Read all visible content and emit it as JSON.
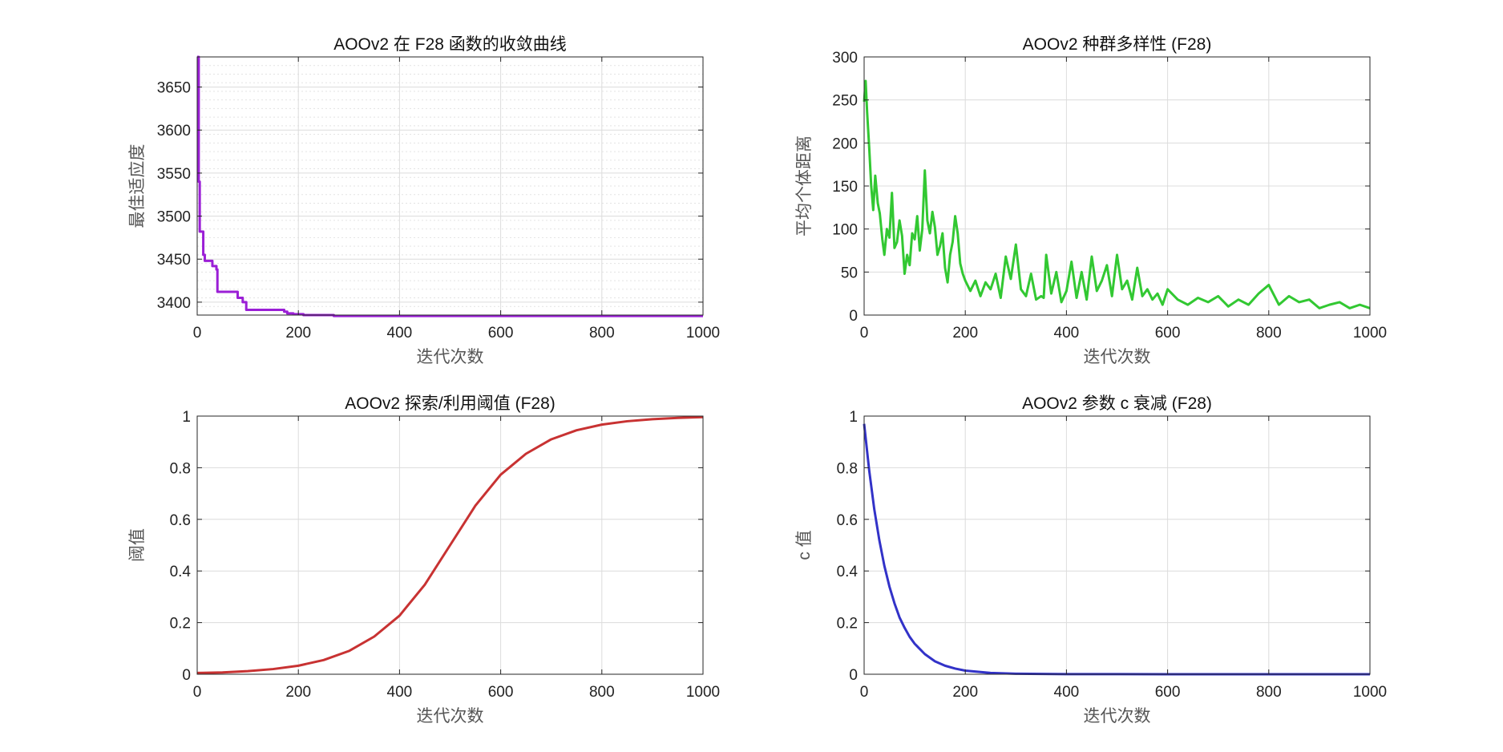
{
  "chart_data": [
    {
      "type": "line",
      "title": "AOOv2 在 F28 函数的收敛曲线",
      "xlabel": "迭代次数",
      "ylabel": "最佳适应度",
      "xlim": [
        0,
        1000
      ],
      "ylim": [
        3385,
        3685
      ],
      "xticks": [
        0,
        200,
        400,
        600,
        800,
        1000
      ],
      "yticks": [
        3400,
        3450,
        3500,
        3550,
        3600,
        3650
      ],
      "grid": true,
      "minor_grid": true,
      "color": "#9b1fd6",
      "step": true,
      "series": [
        {
          "x": [
            0,
            3,
            5,
            12,
            15,
            22,
            30,
            38,
            40,
            75,
            80,
            90,
            97,
            120,
            172,
            178,
            190,
            210,
            270,
            330,
            1000
          ],
          "values": [
            3685,
            3540,
            3482,
            3455,
            3448,
            3448,
            3442,
            3438,
            3412,
            3412,
            3405,
            3400,
            3391,
            3391,
            3389,
            3387,
            3386,
            3385,
            3384,
            3384,
            3384
          ]
        }
      ]
    },
    {
      "type": "line",
      "title": "AOOv2 种群多样性 (F28)",
      "xlabel": "迭代次数",
      "ylabel": "平均个体距离",
      "xlim": [
        0,
        1000
      ],
      "ylim": [
        0,
        300
      ],
      "xticks": [
        0,
        200,
        400,
        600,
        800,
        1000
      ],
      "yticks": [
        0,
        50,
        100,
        150,
        200,
        250,
        300
      ],
      "grid": true,
      "color": "#32c832",
      "series": [
        {
          "x": [
            0,
            3,
            6,
            10,
            14,
            18,
            22,
            27,
            31,
            36,
            40,
            45,
            50,
            55,
            60,
            65,
            70,
            75,
            80,
            85,
            90,
            95,
            100,
            105,
            110,
            115,
            120,
            125,
            130,
            135,
            140,
            145,
            150,
            155,
            160,
            165,
            170,
            175,
            180,
            185,
            190,
            195,
            200,
            210,
            220,
            230,
            240,
            250,
            260,
            270,
            280,
            290,
            300,
            310,
            320,
            330,
            340,
            350,
            355,
            360,
            370,
            380,
            390,
            400,
            410,
            420,
            430,
            440,
            450,
            460,
            470,
            480,
            490,
            500,
            510,
            520,
            530,
            540,
            550,
            560,
            570,
            580,
            590,
            600,
            620,
            640,
            660,
            680,
            700,
            720,
            740,
            760,
            780,
            800,
            820,
            840,
            860,
            880,
            900,
            920,
            940,
            960,
            980,
            1000
          ],
          "values": [
            248,
            272,
            235,
            195,
            150,
            122,
            162,
            130,
            118,
            88,
            70,
            100,
            90,
            142,
            78,
            85,
            110,
            92,
            48,
            70,
            58,
            95,
            88,
            115,
            75,
            100,
            168,
            110,
            95,
            120,
            102,
            70,
            80,
            95,
            55,
            38,
            70,
            85,
            115,
            95,
            60,
            48,
            40,
            28,
            40,
            22,
            38,
            30,
            48,
            20,
            68,
            42,
            82,
            30,
            22,
            48,
            18,
            22,
            20,
            70,
            25,
            50,
            15,
            28,
            62,
            20,
            50,
            18,
            68,
            28,
            40,
            58,
            22,
            70,
            30,
            40,
            18,
            55,
            22,
            30,
            18,
            25,
            12,
            30,
            18,
            12,
            20,
            15,
            22,
            10,
            18,
            12,
            25,
            35,
            12,
            22,
            15,
            18,
            8,
            12,
            15,
            8,
            12,
            8
          ]
        }
      ]
    },
    {
      "type": "line",
      "title": "AOOv2 探索/利用阈值 (F28)",
      "xlabel": "迭代次数",
      "ylabel": "阈值",
      "xlim": [
        0,
        1000
      ],
      "ylim": [
        0,
        1
      ],
      "xticks": [
        0,
        200,
        400,
        600,
        800,
        1000
      ],
      "yticks": [
        0,
        0.2,
        0.4,
        0.6,
        0.8,
        1
      ],
      "grid": true,
      "color": "#c83232",
      "series": [
        {
          "x": [
            0,
            50,
            100,
            150,
            200,
            250,
            300,
            350,
            400,
            450,
            500,
            550,
            600,
            650,
            700,
            750,
            800,
            850,
            900,
            950,
            1000
          ],
          "values": [
            0.005,
            0.007,
            0.012,
            0.02,
            0.033,
            0.055,
            0.09,
            0.146,
            0.227,
            0.347,
            0.5,
            0.653,
            0.773,
            0.854,
            0.91,
            0.945,
            0.967,
            0.98,
            0.988,
            0.993,
            0.996
          ]
        }
      ]
    },
    {
      "type": "line",
      "title": "AOOv2 参数 c 衰减 (F28)",
      "xlabel": "迭代次数",
      "ylabel": "c 值",
      "xlim": [
        0,
        1000
      ],
      "ylim": [
        0,
        1
      ],
      "xticks": [
        0,
        200,
        400,
        600,
        800,
        1000
      ],
      "yticks": [
        0,
        0.2,
        0.4,
        0.6,
        0.8,
        1
      ],
      "grid": true,
      "color": "#3232c8",
      "series": [
        {
          "x": [
            0,
            10,
            20,
            30,
            40,
            50,
            60,
            70,
            80,
            90,
            100,
            120,
            140,
            160,
            180,
            200,
            250,
            300,
            400,
            600,
            800,
            1000
          ],
          "values": [
            0.97,
            0.79,
            0.64,
            0.52,
            0.42,
            0.34,
            0.275,
            0.22,
            0.18,
            0.145,
            0.118,
            0.078,
            0.05,
            0.033,
            0.022,
            0.014,
            0.005,
            0.002,
            0.0005,
            0.0,
            0.0,
            0.0
          ]
        }
      ]
    }
  ]
}
